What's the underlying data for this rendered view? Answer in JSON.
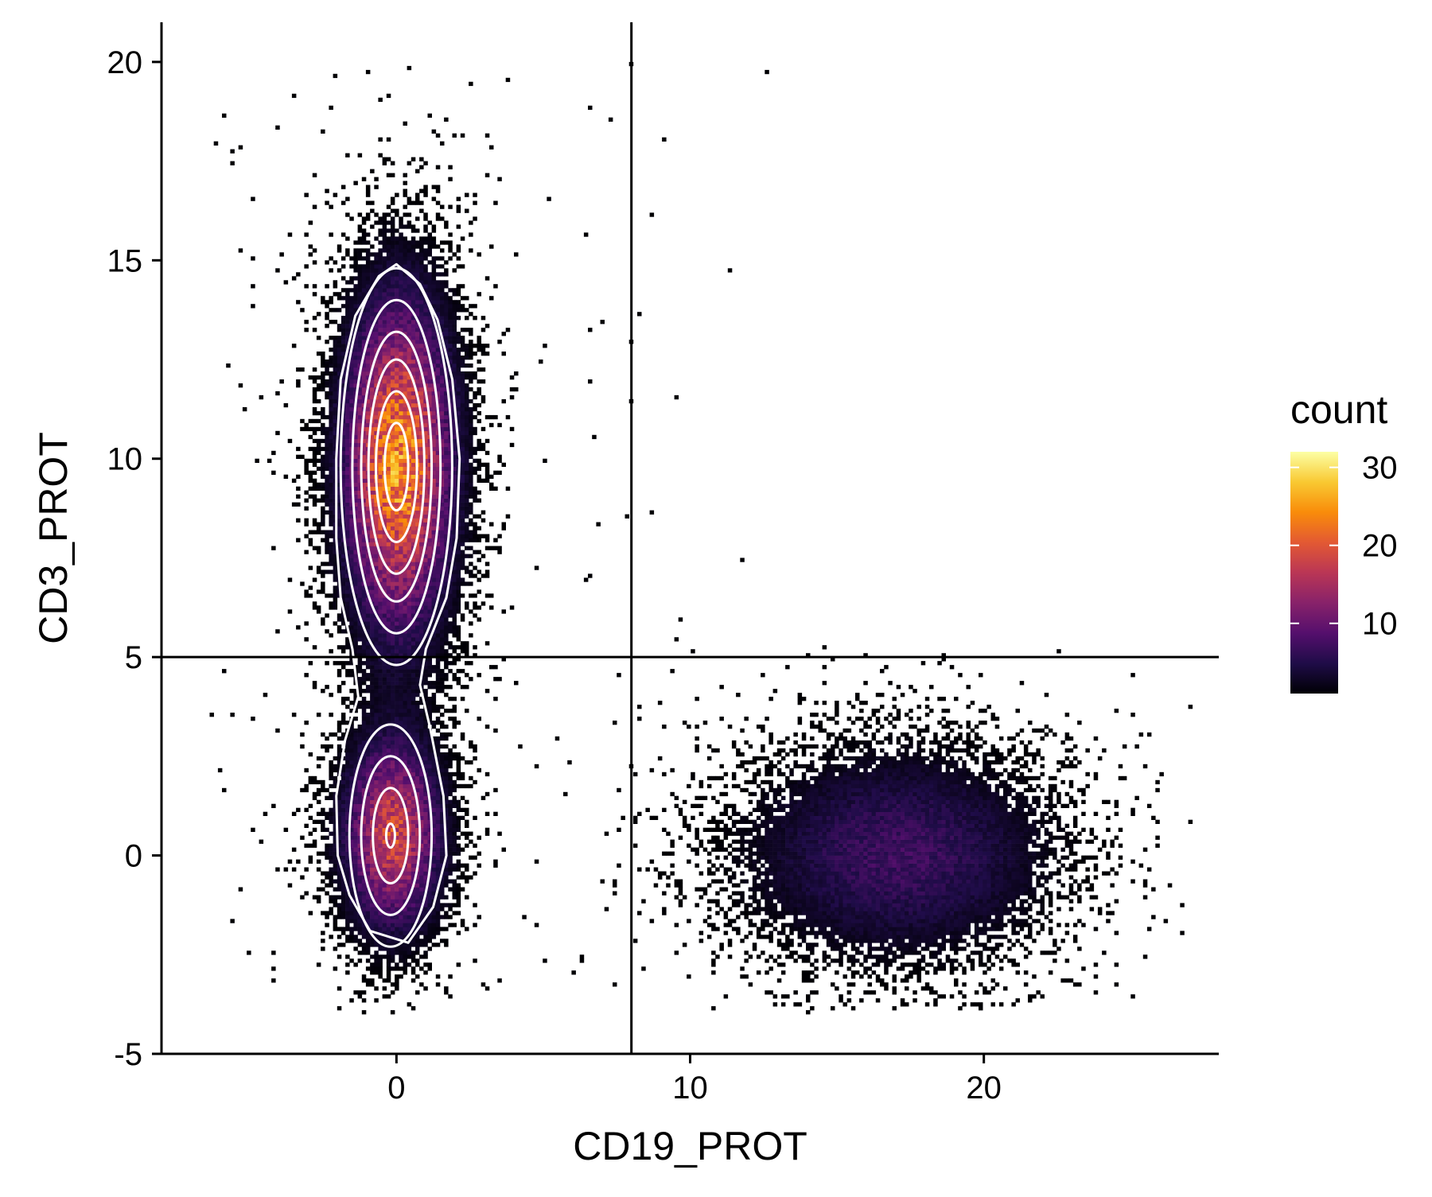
{
  "chart_data": {
    "type": "heatmap",
    "subtype": "2d-binned-density-with-contours",
    "xlabel": "CD19_PROT",
    "ylabel": "CD3_PROT",
    "xlim": [
      -8,
      28
    ],
    "ylim": [
      -5,
      21
    ],
    "x_ticks": [
      {
        "value": 0,
        "label": "0"
      },
      {
        "value": 10,
        "label": "10"
      },
      {
        "value": 20,
        "label": "20"
      }
    ],
    "y_ticks": [
      {
        "value": -5,
        "label": "-5"
      },
      {
        "value": 0,
        "label": "0"
      },
      {
        "value": 5,
        "label": "5"
      },
      {
        "value": 10,
        "label": "10"
      },
      {
        "value": 15,
        "label": "15"
      },
      {
        "value": 20,
        "label": "20"
      }
    ],
    "grid": false,
    "gate_lines": {
      "vertical_x": 8,
      "horizontal_y": 5
    },
    "legend": {
      "title": "count",
      "placement": "right",
      "range": [
        1,
        32
      ],
      "ticks": [
        {
          "value": 10,
          "label": "10"
        },
        {
          "value": 20,
          "label": "20"
        },
        {
          "value": 30,
          "label": "30"
        }
      ],
      "colormap": [
        "#000004",
        "#1f0c48",
        "#550f6d",
        "#88226a",
        "#ba3655",
        "#e35933",
        "#f98c0a",
        "#f9c932",
        "#fcffa4"
      ]
    },
    "clusters": [
      {
        "name": "upper-left",
        "center": [
          0,
          9.8
        ],
        "sd": [
          1.15,
          2.6
        ],
        "peak_count": 24
      },
      {
        "name": "lower-left",
        "center": [
          -0.2,
          0.5
        ],
        "sd": [
          1.05,
          1.5
        ],
        "peak_count": 18
      },
      {
        "name": "lower-right",
        "center": [
          17,
          0
        ],
        "sd": [
          3.2,
          1.6
        ],
        "peak_count": 7
      }
    ],
    "contour_color": "#ffffff",
    "contours": [
      {
        "cluster": "upper-left",
        "rings": [
          [
            1.9,
            5.0
          ],
          [
            1.5,
            4.2
          ],
          [
            1.2,
            3.4
          ],
          [
            0.95,
            2.7
          ],
          [
            0.7,
            1.9
          ],
          [
            0.4,
            1.1
          ]
        ]
      },
      {
        "cluster": "lower-left",
        "rings": [
          [
            1.4,
            2.8
          ],
          [
            1.0,
            2.0
          ],
          [
            0.6,
            1.2
          ],
          [
            0.15,
            0.3
          ]
        ]
      },
      {
        "cluster": "outer",
        "polygon": [
          [
            0,
            14.9
          ],
          [
            0.8,
            14.4
          ],
          [
            1.4,
            13.5
          ],
          [
            1.9,
            12
          ],
          [
            2.15,
            10
          ],
          [
            2.05,
            8
          ],
          [
            1.7,
            6.5
          ],
          [
            1.0,
            5.2
          ],
          [
            0.8,
            4.3
          ],
          [
            1.15,
            3.2
          ],
          [
            1.6,
            1.5
          ],
          [
            1.7,
            0
          ],
          [
            1.25,
            -1.3
          ],
          [
            0.4,
            -2.2
          ],
          [
            -0.9,
            -1.9
          ],
          [
            -1.6,
            -1.0
          ],
          [
            -2.0,
            0
          ],
          [
            -2.05,
            1.5
          ],
          [
            -1.75,
            2.9
          ],
          [
            -1.3,
            4
          ],
          [
            -1.5,
            5.2
          ],
          [
            -1.9,
            6.5
          ],
          [
            -2.05,
            8
          ],
          [
            -2.05,
            10
          ],
          [
            -1.9,
            12
          ],
          [
            -1.4,
            13.6
          ],
          [
            -0.6,
            14.6
          ]
        ]
      }
    ]
  }
}
